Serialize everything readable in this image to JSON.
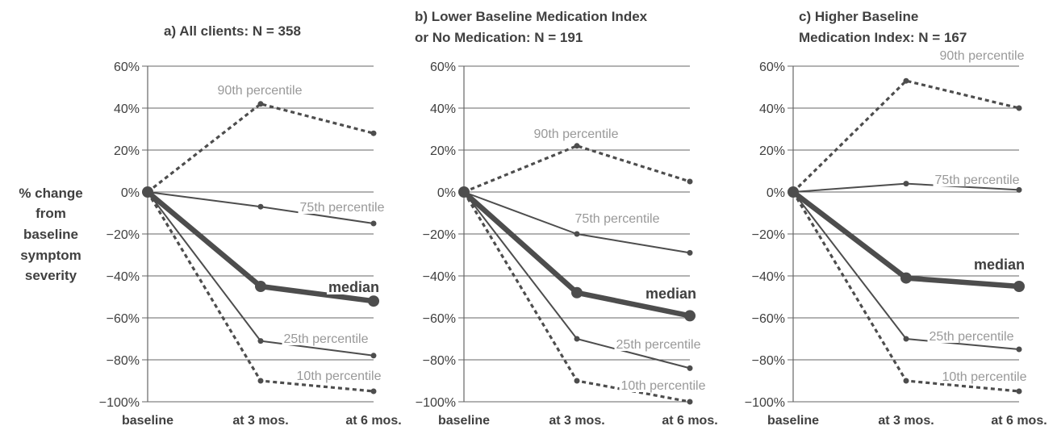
{
  "chart_data": {
    "type": "line",
    "ylabel": [
      "% change",
      "from",
      "baseline",
      "symptom",
      "severity"
    ],
    "yticks": [
      "60%",
      "40%",
      "20%",
      "0%",
      "−20%",
      "−40%",
      "−60%",
      "−80%",
      "−100%"
    ],
    "ylim": [
      -100,
      60
    ],
    "categories": [
      "baseline",
      "at 3 mos.",
      "at 6 mos."
    ],
    "grid": true,
    "colors": {
      "text": "#404040",
      "line": "#4d4d4d",
      "label": "#999999",
      "grid": "#666666"
    },
    "panels": [
      {
        "title": [
          "a)  All clients: N = 358"
        ],
        "series": [
          {
            "name": "90th percentile",
            "style": "dotted",
            "values": [
              0,
              42,
              28
            ]
          },
          {
            "name": "75th percentile",
            "style": "thin",
            "values": [
              0,
              -7,
              -15
            ]
          },
          {
            "name": "median",
            "style": "thick",
            "values": [
              0,
              -45,
              -52
            ]
          },
          {
            "name": "25th percentile",
            "style": "thin",
            "values": [
              0,
              -71,
              -78
            ]
          },
          {
            "name": "10th percentile",
            "style": "dotted",
            "values": [
              0,
              -90,
              -95
            ]
          }
        ]
      },
      {
        "title": [
          "b)  Lower Baseline Medication Index",
          "or No Medication: N = 191"
        ],
        "series": [
          {
            "name": "90th percentile",
            "style": "dotted",
            "values": [
              0,
              22,
              5
            ]
          },
          {
            "name": "75th percentile",
            "style": "thin",
            "values": [
              0,
              -20,
              -29
            ]
          },
          {
            "name": "median",
            "style": "thick",
            "values": [
              0,
              -48,
              -59
            ]
          },
          {
            "name": "25th percentile",
            "style": "thin",
            "values": [
              0,
              -70,
              -84
            ]
          },
          {
            "name": "10th percentile",
            "style": "dotted",
            "values": [
              0,
              -90,
              -100
            ]
          }
        ]
      },
      {
        "title": [
          "c)  Higher Baseline",
          "Medication Index: N = 167"
        ],
        "series": [
          {
            "name": "90th percentile",
            "style": "dotted",
            "values": [
              0,
              53,
              40
            ]
          },
          {
            "name": "75th percentile",
            "style": "thin",
            "values": [
              0,
              4,
              1
            ]
          },
          {
            "name": "median",
            "style": "thick",
            "values": [
              0,
              -41,
              -45
            ]
          },
          {
            "name": "25th percentile",
            "style": "thin",
            "values": [
              0,
              -70,
              -75
            ]
          },
          {
            "name": "10th percentile",
            "style": "dotted",
            "values": [
              0,
              -90,
              -95
            ]
          }
        ]
      }
    ]
  }
}
